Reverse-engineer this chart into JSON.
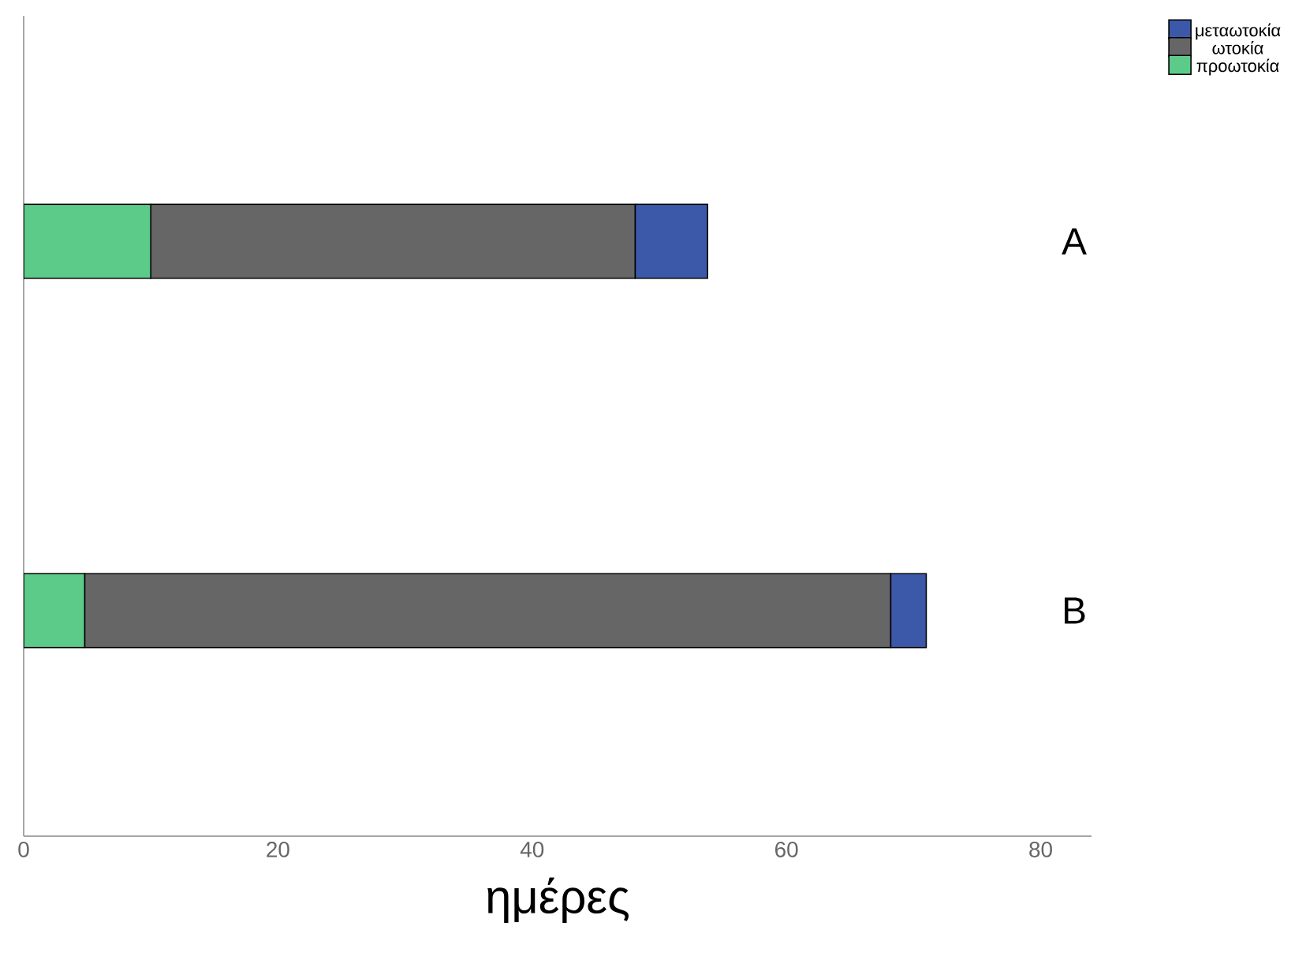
{
  "chart_data": {
    "type": "bar",
    "orientation": "horizontal",
    "stacked": true,
    "xlabel": "ημέρες",
    "categories": [
      "A",
      "B"
    ],
    "series": [
      {
        "name": "προωτοκία",
        "color": "#5ccb8a",
        "values": [
          10.0,
          4.8
        ]
      },
      {
        "name": "ωτοκία",
        "color": "#666666",
        "values": [
          38.1,
          63.4
        ]
      },
      {
        "name": "μεταωτοκία",
        "color": "#3c58a8",
        "values": [
          5.7,
          2.8
        ]
      }
    ],
    "xlim": [
      0,
      84
    ],
    "xticks": [
      0,
      20,
      40,
      60,
      80
    ],
    "legend": "top right",
    "grid": false
  }
}
